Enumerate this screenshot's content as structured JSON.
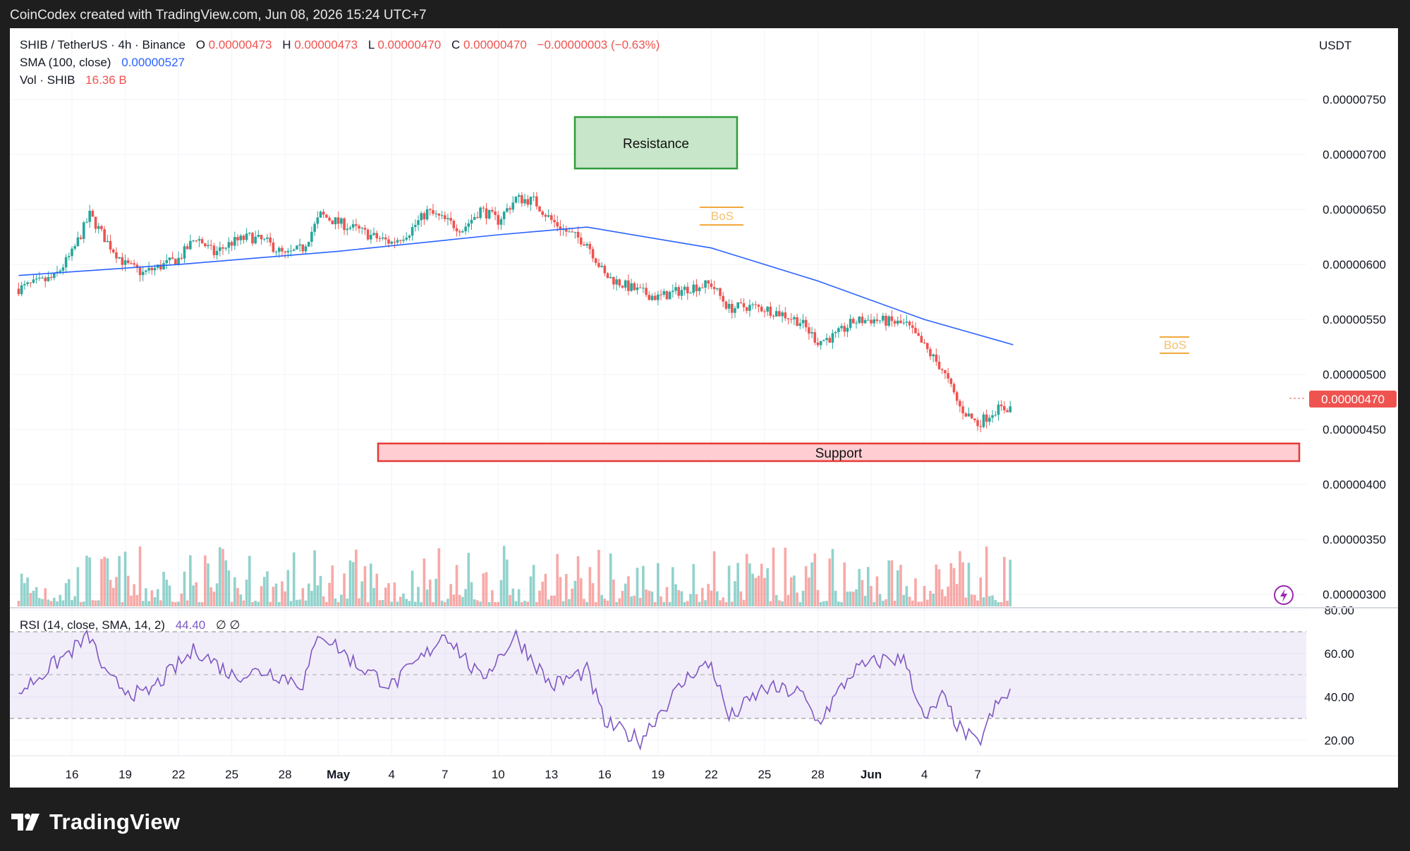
{
  "header": {
    "credit": "CoinCodex created with TradingView.com, Jun 08, 2026 15:24 UTC+7"
  },
  "legend": {
    "symbol": "SHIB / TetherUS · 4h · Binance",
    "o_label": "O",
    "o_value": "0.00000473",
    "h_label": "H",
    "h_value": "0.00000473",
    "l_label": "L",
    "l_value": "0.00000470",
    "c_label": "C",
    "c_value": "0.00000470",
    "change": "−0.00000003 (−0.63%)",
    "sma_label": "SMA (100, close)",
    "sma_value": "0.00000527",
    "vol_label": "Vol · SHIB",
    "vol_value": "16.36 B",
    "rsi_label": "RSI (14, close, SMA, 14, 2)",
    "rsi_value": "44.40",
    "rsi_extra": "∅  ∅"
  },
  "currency": "USDT",
  "last_price_label": "0.00000470",
  "annotations": {
    "resistance": "Resistance",
    "support": "Support",
    "bos1": "BoS",
    "bos2": "BoS"
  },
  "footer": {
    "brand": "TradingView"
  },
  "colors": {
    "up": "#26a69a",
    "down": "#ef5350",
    "sma": "#2962ff",
    "rsi": "#7e57c2",
    "resistance_fill": "#c8e6c9",
    "resistance_border": "#2e9d3a",
    "support_fill": "#ffcdd2",
    "support_border": "#e53935",
    "bos": "#f2a93b"
  },
  "chart_data": [
    {
      "type": "candlestick",
      "title": "SHIB / TetherUS · 4h · Binance",
      "x_ticks": [
        "16",
        "19",
        "22",
        "25",
        "28",
        "May",
        "4",
        "7",
        "10",
        "13",
        "16",
        "19",
        "22",
        "25",
        "28",
        "Jun",
        "4",
        "7"
      ],
      "y_ticks": [
        "0.00000750",
        "0.00000700",
        "0.00000650",
        "0.00000600",
        "0.00000550",
        "0.00000500",
        "0.00000450",
        "0.00000400",
        "0.00000350",
        "0.00000300"
      ],
      "y_range": [
        2.9e-06,
        7.7e-06
      ],
      "close_path": [
        {
          "x": "Apr 13",
          "y": 5.78e-06
        },
        {
          "x": "Apr 15",
          "y": 5.88e-06
        },
        {
          "x": "Apr 16",
          "y": 6.1e-06
        },
        {
          "x": "Apr 17",
          "y": 6.45e-06
        },
        {
          "x": "Apr 18",
          "y": 6.2e-06
        },
        {
          "x": "Apr 19",
          "y": 6e-06
        },
        {
          "x": "Apr 20",
          "y": 5.92e-06
        },
        {
          "x": "Apr 22",
          "y": 6.05e-06
        },
        {
          "x": "Apr 23",
          "y": 6.25e-06
        },
        {
          "x": "Apr 24",
          "y": 6.1e-06
        },
        {
          "x": "Apr 25",
          "y": 6.2e-06
        },
        {
          "x": "Apr 26",
          "y": 6.25e-06
        },
        {
          "x": "Apr 27",
          "y": 6.2e-06
        },
        {
          "x": "Apr 28",
          "y": 6.08e-06
        },
        {
          "x": "Apr 29",
          "y": 6.15e-06
        },
        {
          "x": "Apr 30",
          "y": 6.45e-06
        },
        {
          "x": "May 1",
          "y": 6.38e-06
        },
        {
          "x": "May 2",
          "y": 6.32e-06
        },
        {
          "x": "May 3",
          "y": 6.25e-06
        },
        {
          "x": "May 4",
          "y": 6.2e-06
        },
        {
          "x": "May 5",
          "y": 6.3e-06
        },
        {
          "x": "May 6",
          "y": 6.48e-06
        },
        {
          "x": "May 7",
          "y": 6.4e-06
        },
        {
          "x": "May 8",
          "y": 6.32e-06
        },
        {
          "x": "May 9",
          "y": 6.5e-06
        },
        {
          "x": "May 10",
          "y": 6.4e-06
        },
        {
          "x": "May 11",
          "y": 6.6e-06
        },
        {
          "x": "May 12",
          "y": 6.58e-06
        },
        {
          "x": "May 13",
          "y": 6.4e-06
        },
        {
          "x": "May 14",
          "y": 6.28e-06
        },
        {
          "x": "May 15",
          "y": 6.2e-06
        },
        {
          "x": "May 16",
          "y": 5.9e-06
        },
        {
          "x": "May 17",
          "y": 5.82e-06
        },
        {
          "x": "May 18",
          "y": 5.75e-06
        },
        {
          "x": "May 19",
          "y": 5.7e-06
        },
        {
          "x": "May 20",
          "y": 5.75e-06
        },
        {
          "x": "May 21",
          "y": 5.8e-06
        },
        {
          "x": "May 22",
          "y": 5.82e-06
        },
        {
          "x": "May 23",
          "y": 5.6e-06
        },
        {
          "x": "May 24",
          "y": 5.62e-06
        },
        {
          "x": "May 25",
          "y": 5.6e-06
        },
        {
          "x": "May 26",
          "y": 5.55e-06
        },
        {
          "x": "May 27",
          "y": 5.48e-06
        },
        {
          "x": "May 28",
          "y": 5.3e-06
        },
        {
          "x": "May 29",
          "y": 5.35e-06
        },
        {
          "x": "May 30",
          "y": 5.48e-06
        },
        {
          "x": "May 31",
          "y": 5.5e-06
        },
        {
          "x": "Jun 1",
          "y": 5.48e-06
        },
        {
          "x": "Jun 2",
          "y": 5.45e-06
        },
        {
          "x": "Jun 3",
          "y": 5.25e-06
        },
        {
          "x": "Jun 4",
          "y": 5.05e-06
        },
        {
          "x": "Jun 5",
          "y": 4.7e-06
        },
        {
          "x": "Jun 6",
          "y": 4.55e-06
        },
        {
          "x": "Jun 7",
          "y": 4.68e-06
        },
        {
          "x": "Jun 8",
          "y": 4.7e-06
        }
      ],
      "sma_path": [
        {
          "x": "Apr 13",
          "y": 5.9e-06
        },
        {
          "x": "Apr 22",
          "y": 6e-06
        },
        {
          "x": "May 1",
          "y": 6.12e-06
        },
        {
          "x": "May 10",
          "y": 6.27e-06
        },
        {
          "x": "May 15",
          "y": 6.34e-06
        },
        {
          "x": "May 22",
          "y": 6.15e-06
        },
        {
          "x": "May 28",
          "y": 5.85e-06
        },
        {
          "x": "Jun 3",
          "y": 5.5e-06
        },
        {
          "x": "Jun 8",
          "y": 5.27e-06
        }
      ]
    },
    {
      "type": "rsi",
      "title": "RSI (14, close, SMA, 14, 2)",
      "y_ticks": [
        "80.00",
        "60.00",
        "40.00",
        "20.00"
      ],
      "y_range": [
        13,
        82
      ],
      "bands": [
        70,
        50,
        30
      ],
      "values": [
        {
          "x": "Apr 13",
          "y": 42
        },
        {
          "x": "Apr 15",
          "y": 55
        },
        {
          "x": "Apr 17",
          "y": 68
        },
        {
          "x": "Apr 18",
          "y": 48
        },
        {
          "x": "Apr 20",
          "y": 40
        },
        {
          "x": "Apr 23",
          "y": 62
        },
        {
          "x": "Apr 25",
          "y": 50
        },
        {
          "x": "Apr 27",
          "y": 52
        },
        {
          "x": "Apr 29",
          "y": 46
        },
        {
          "x": "Apr 30",
          "y": 70
        },
        {
          "x": "May 2",
          "y": 55
        },
        {
          "x": "May 4",
          "y": 45
        },
        {
          "x": "May 6",
          "y": 60
        },
        {
          "x": "May 7",
          "y": 70
        },
        {
          "x": "May 9",
          "y": 48
        },
        {
          "x": "May 11",
          "y": 68
        },
        {
          "x": "May 13",
          "y": 45
        },
        {
          "x": "May 15",
          "y": 52
        },
        {
          "x": "May 16",
          "y": 28
        },
        {
          "x": "May 18",
          "y": 20
        },
        {
          "x": "May 19",
          "y": 32
        },
        {
          "x": "May 21",
          "y": 52
        },
        {
          "x": "May 22",
          "y": 55
        },
        {
          "x": "May 23",
          "y": 30
        },
        {
          "x": "May 25",
          "y": 44
        },
        {
          "x": "May 27",
          "y": 42
        },
        {
          "x": "May 28",
          "y": 28
        },
        {
          "x": "May 30",
          "y": 52
        },
        {
          "x": "Jun 1",
          "y": 58
        },
        {
          "x": "Jun 2",
          "y": 56
        },
        {
          "x": "Jun 3",
          "y": 28
        },
        {
          "x": "Jun 4",
          "y": 40
        },
        {
          "x": "Jun 5",
          "y": 25
        },
        {
          "x": "Jun 6",
          "y": 18
        },
        {
          "x": "Jun 7",
          "y": 35
        },
        {
          "x": "Jun 8",
          "y": 44
        }
      ]
    }
  ]
}
